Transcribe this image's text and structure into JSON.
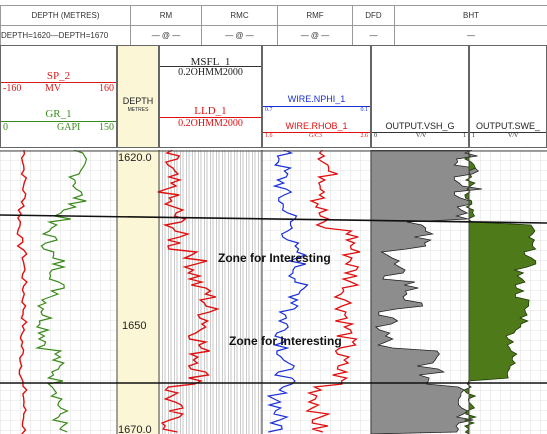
{
  "header_table": {
    "columns": [
      "DEPTH (METRES)",
      "RM",
      "RMC",
      "RMF",
      "DFD",
      "BHT"
    ],
    "values": [
      "DEPTH=1620—DEPTH=1670",
      "— @ —",
      "— @ —",
      "— @ —",
      "—",
      "—"
    ]
  },
  "track1": {
    "sp_label": "SP_2",
    "sp_min": "-160",
    "sp_unit": "MV",
    "sp_max": "160",
    "gr_label": "GR_1",
    "gr_min": "0",
    "gr_unit": "GAPI",
    "gr_max": "150",
    "sp_color": "#d81b1b",
    "gr_color": "#3a8a1a"
  },
  "depth_track": {
    "label": "DEPTH",
    "unit": "METRES",
    "ticks": [
      "1620.0",
      "1650",
      "1670.0"
    ],
    "fill_color": "#fbf7d6"
  },
  "track2": {
    "msfl_label": "MSFL_1",
    "msfl_scale": "0.2OHMM2000",
    "lld_label": "LLD_1",
    "lld_scale": "0.2OHMM2000",
    "lld_color": "#e01010"
  },
  "track3": {
    "nphi_label": "WIRE.NPHI_1",
    "nphi_min": "0.7",
    "nphi_max": "0.1",
    "rhob_label": "WIRE.RHOB_1",
    "rhob_min": "1.6",
    "rhob_unit": "G/C3",
    "rhob_max": "2.6",
    "nphi_color": "#1a2fd8",
    "rhob_color": "#e01010"
  },
  "track4": {
    "vsh_label": "OUTPUT.VSH_G",
    "vsh_min": "0",
    "vsh_unit": "V/V",
    "vsh_max": "1",
    "fill_color": "#8d8d8d"
  },
  "track5": {
    "swe_label": "OUTPUT.SWE_",
    "swe_min": "1",
    "swe_unit": "V/V",
    "fill_color": "#4f7a1a"
  },
  "annotations": [
    "Zone for Interesting",
    "Zone for Interesting"
  ]
}
